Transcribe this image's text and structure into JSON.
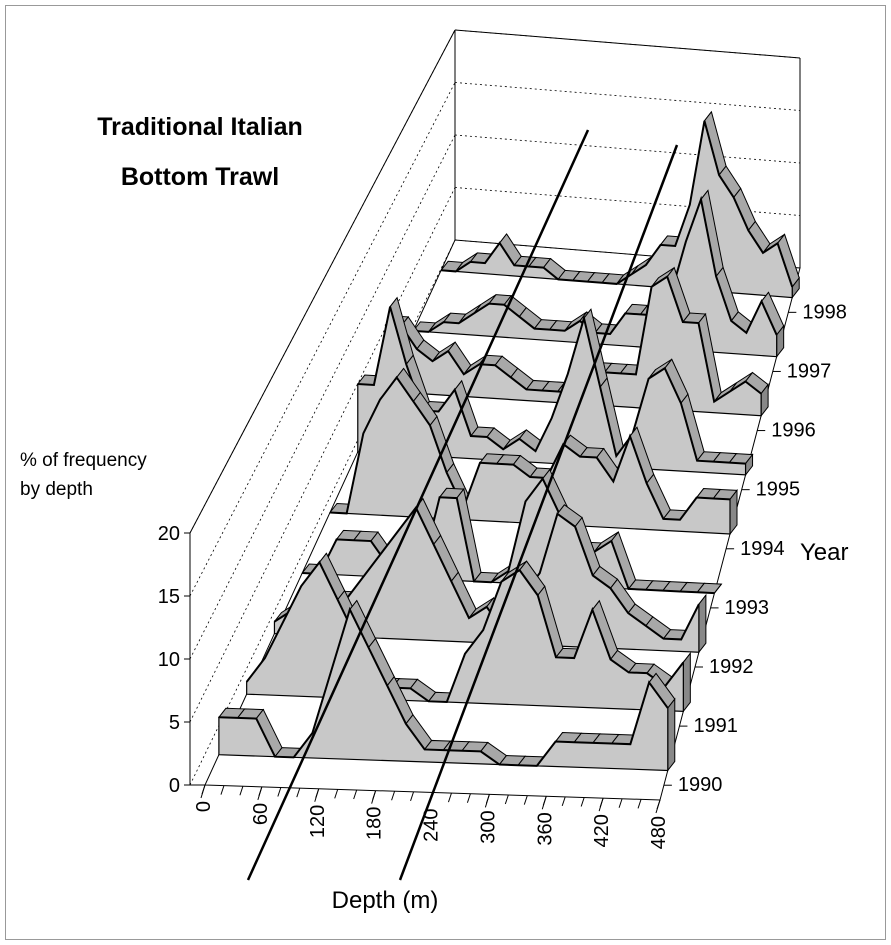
{
  "chart_data": {
    "type": "ribbon3d",
    "title": [
      "Traditional Italian",
      "Bottom Trawl"
    ],
    "z_label": [
      "% of frequency",
      "by depth"
    ],
    "x_label": "Depth (m)",
    "series_label": "Year",
    "color": "#c8c8c8",
    "x": [
      0,
      20,
      40,
      60,
      80,
      100,
      120,
      140,
      160,
      180,
      200,
      220,
      240,
      260,
      280,
      300,
      320,
      340,
      360,
      380,
      400,
      420,
      440,
      460,
      480
    ],
    "xlim": [
      0,
      480
    ],
    "xticks": [
      0,
      60,
      120,
      180,
      240,
      300,
      360,
      420,
      480
    ],
    "ylim": [
      0,
      20
    ],
    "yticks": [
      0,
      5,
      10,
      15,
      20
    ],
    "series": [
      {
        "name": "1990",
        "values": [
          3,
          3,
          3,
          0,
          0,
          2,
          7,
          12,
          9,
          6,
          3,
          1,
          1,
          1,
          1,
          0,
          0,
          0,
          2,
          2,
          2,
          2,
          2,
          7,
          5
        ]
      },
      {
        "name": "1991",
        "values": [
          1,
          3,
          6,
          9,
          11,
          8,
          5,
          1,
          1,
          1,
          0,
          0,
          4,
          6,
          10,
          11,
          9,
          4,
          4,
          8,
          4,
          3,
          3,
          2,
          4
        ]
      },
      {
        "name": "1992",
        "values": [
          1,
          2,
          2,
          3,
          3,
          5,
          7,
          9,
          11,
          8,
          5,
          2,
          3,
          1,
          4,
          6,
          11,
          10,
          6,
          5,
          3,
          2,
          1,
          1,
          4
        ]
      },
      {
        "name": "1993",
        "values": [
          0,
          0,
          3,
          3,
          3,
          1,
          1,
          1,
          7,
          7,
          0,
          0,
          1,
          7,
          9,
          6,
          3,
          3,
          4,
          0,
          0,
          0,
          0,
          0,
          0
        ]
      },
      {
        "name": "1994",
        "values": [
          0,
          0,
          7,
          10,
          12,
          10,
          8,
          4,
          1,
          5,
          5,
          5,
          4,
          4,
          7,
          6,
          6,
          4,
          8,
          4,
          1,
          1,
          3,
          3,
          3
        ]
      },
      {
        "name": "1995",
        "values": [
          6,
          6,
          13,
          8,
          4,
          4,
          6,
          2,
          2,
          1,
          2,
          1,
          4,
          8,
          13,
          7,
          1,
          3,
          8,
          9,
          6,
          1,
          1,
          1,
          1
        ]
      },
      {
        "name": "1996",
        "values": [
          6,
          6,
          4,
          3,
          4,
          2,
          3,
          3,
          2,
          1,
          1,
          1,
          1,
          3,
          3,
          3,
          3,
          11,
          12,
          8,
          8,
          1,
          2,
          3,
          2
        ]
      },
      {
        "name": "1997",
        "values": [
          0,
          0,
          1,
          1,
          2,
          3,
          3,
          2,
          1,
          1,
          1,
          2,
          1,
          1,
          3,
          3,
          3,
          5,
          10,
          14,
          7,
          3,
          2,
          5,
          2
        ]
      },
      {
        "name": "1998",
        "values": [
          0,
          0,
          1,
          1,
          3,
          1,
          1,
          1,
          0,
          0,
          0,
          0,
          0,
          1,
          2,
          4,
          4,
          8,
          16,
          11,
          9,
          6,
          4,
          5,
          1
        ]
      }
    ]
  }
}
